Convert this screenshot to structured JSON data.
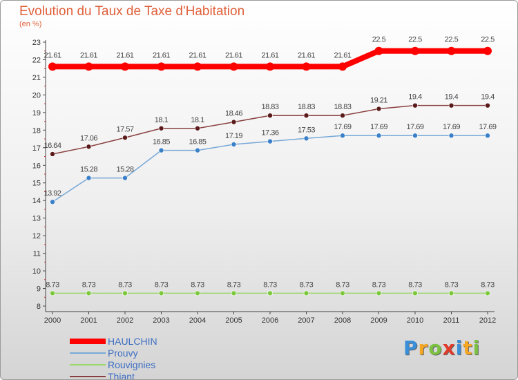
{
  "page": {
    "title": "Evolution du Taux de Taxe d'Habitation",
    "unit": "(en %)",
    "logo_letters": [
      {
        "ch": "P",
        "color": "#3a8fd8"
      },
      {
        "ch": "r",
        "color": "#f5a623"
      },
      {
        "ch": "o",
        "color": "#7bc142"
      },
      {
        "ch": "x",
        "color": "#e23a2a"
      },
      {
        "ch": "i",
        "color": "#3a8fd8"
      },
      {
        "ch": "t",
        "color": "#f5a623"
      },
      {
        "ch": "i",
        "color": "#7bc142"
      }
    ]
  },
  "chart_data": {
    "type": "line",
    "title": "Evolution du Taux de Taxe d'Habitation",
    "ylabel": "(en %)",
    "xlabel": "",
    "ylim": [
      8,
      23
    ],
    "y_ticks": [
      8,
      9,
      10,
      11,
      12,
      13,
      14,
      15,
      16,
      17,
      18,
      19,
      20,
      21,
      22,
      23
    ],
    "categories": [
      "2000",
      "2001",
      "2002",
      "2003",
      "2004",
      "2005",
      "2006",
      "2007",
      "2008",
      "2009",
      "2010",
      "2011",
      "2012"
    ],
    "grid": false,
    "legend_position": "bottom-left",
    "series": [
      {
        "name": "HAULCHIN",
        "color": "#ff0000",
        "marker_color": "#ff0000",
        "width": 8,
        "values": [
          21.61,
          21.61,
          21.61,
          21.61,
          21.61,
          21.61,
          21.61,
          21.61,
          21.61,
          22.5,
          22.5,
          22.5,
          22.5
        ]
      },
      {
        "name": "Prouvy",
        "color": "#78a8d8",
        "marker_color": "#3a80c8",
        "width": 1.5,
        "values": [
          13.92,
          15.28,
          15.28,
          16.85,
          16.85,
          17.19,
          17.36,
          17.53,
          17.69,
          17.69,
          17.69,
          17.69,
          17.69
        ]
      },
      {
        "name": "Rouvignies",
        "color": "#9ad86a",
        "marker_color": "#7cc83c",
        "width": 1.5,
        "values": [
          8.73,
          8.73,
          8.73,
          8.73,
          8.73,
          8.73,
          8.73,
          8.73,
          8.73,
          8.73,
          8.73,
          8.73,
          8.73
        ]
      },
      {
        "name": "Thiant",
        "color": "#8a4040",
        "marker_color": "#5a1a1a",
        "width": 1.5,
        "values": [
          16.64,
          17.06,
          17.57,
          18.1,
          18.1,
          18.46,
          18.83,
          18.83,
          18.83,
          19.21,
          19.4,
          19.4,
          19.4
        ]
      }
    ]
  }
}
